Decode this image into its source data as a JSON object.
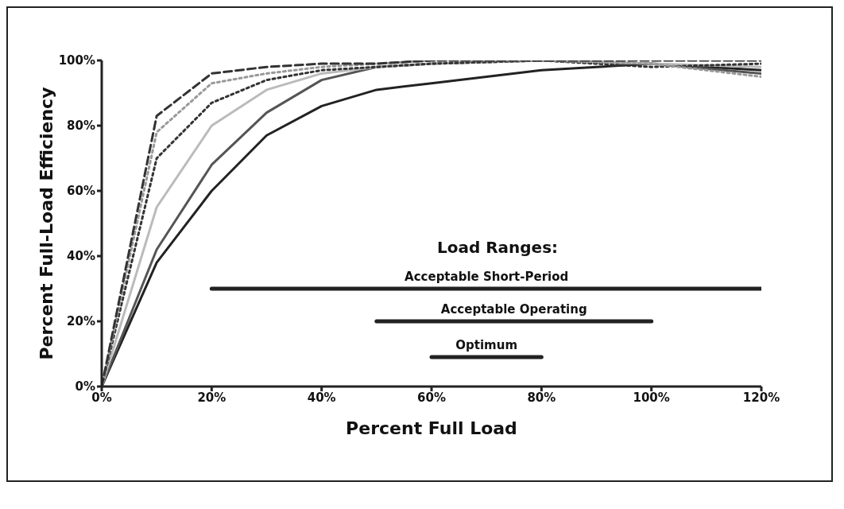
{
  "chart_data": {
    "type": "line",
    "xlabel": "Percent Full Load",
    "ylabel": "Percent Full-Load Efficiency",
    "xlim": [
      0,
      120
    ],
    "ylim": [
      0,
      100
    ],
    "xticks": [
      {
        "value": 0,
        "label": "0%"
      },
      {
        "value": 20,
        "label": "20%"
      },
      {
        "value": 40,
        "label": "40%"
      },
      {
        "value": 60,
        "label": "60%"
      },
      {
        "value": 80,
        "label": "80%"
      },
      {
        "value": 100,
        "label": "100%"
      },
      {
        "value": 120,
        "label": "120%"
      }
    ],
    "yticks": [
      {
        "value": 0,
        "label": "0%"
      },
      {
        "value": 20,
        "label": "20%"
      },
      {
        "value": 40,
        "label": "40%"
      },
      {
        "value": 60,
        "label": "60%"
      },
      {
        "value": 80,
        "label": "80%"
      },
      {
        "value": 100,
        "label": "100%"
      }
    ],
    "grid": false,
    "legend": false,
    "marker": "none",
    "annotations": [
      "Load Ranges:"
    ],
    "series": [
      {
        "color": "#222222",
        "line_style": "solid",
        "x": [
          0,
          10,
          20,
          30,
          40,
          50,
          60,
          80,
          100,
          120
        ],
        "values": [
          0,
          38,
          60,
          77,
          86,
          91,
          93,
          97,
          99,
          97
        ]
      },
      {
        "color": "#555555",
        "line_style": "solid",
        "x": [
          0,
          10,
          20,
          30,
          40,
          50,
          60,
          80,
          100,
          120
        ],
        "values": [
          0,
          42,
          68,
          84,
          94,
          98,
          99,
          100,
          99,
          96
        ]
      },
      {
        "color": "#bbbbbb",
        "line_style": "solid",
        "x": [
          0,
          10,
          20,
          30,
          40,
          50,
          60,
          80,
          100,
          120
        ],
        "values": [
          0,
          55,
          80,
          91,
          96,
          98,
          99,
          100,
          99,
          98
        ]
      },
      {
        "color": "#333333",
        "line_style": "dotted",
        "x": [
          0,
          10,
          20,
          30,
          40,
          50,
          60,
          80,
          100,
          120
        ],
        "values": [
          0,
          70,
          87,
          94,
          97,
          98,
          99,
          100,
          98,
          99
        ]
      },
      {
        "color": "#999999",
        "line_style": "dotted",
        "x": [
          0,
          10,
          20,
          30,
          40,
          50,
          60,
          80,
          100,
          120
        ],
        "values": [
          0,
          78,
          93,
          96,
          98,
          99,
          100,
          100,
          99,
          95
        ]
      },
      {
        "color": "#333333",
        "line_style": "dashed",
        "x": [
          0,
          10,
          20,
          30,
          40,
          50,
          60,
          80,
          100,
          120
        ],
        "values": [
          0,
          83,
          96,
          98,
          99,
          99,
          100,
          100,
          100,
          100
        ]
      },
      {
        "name": "Acceptable Short-Period",
        "color": "#222222",
        "line_style": "solid",
        "x": [
          20,
          120
        ],
        "values": [
          30,
          30
        ]
      },
      {
        "name": "Acceptable Operating",
        "color": "#222222",
        "line_style": "solid",
        "x": [
          50,
          100
        ],
        "values": [
          20,
          20
        ]
      },
      {
        "name": "Optimum",
        "color": "#222222",
        "line_style": "solid",
        "x": [
          60,
          80
        ],
        "values": [
          9,
          9
        ]
      }
    ]
  }
}
